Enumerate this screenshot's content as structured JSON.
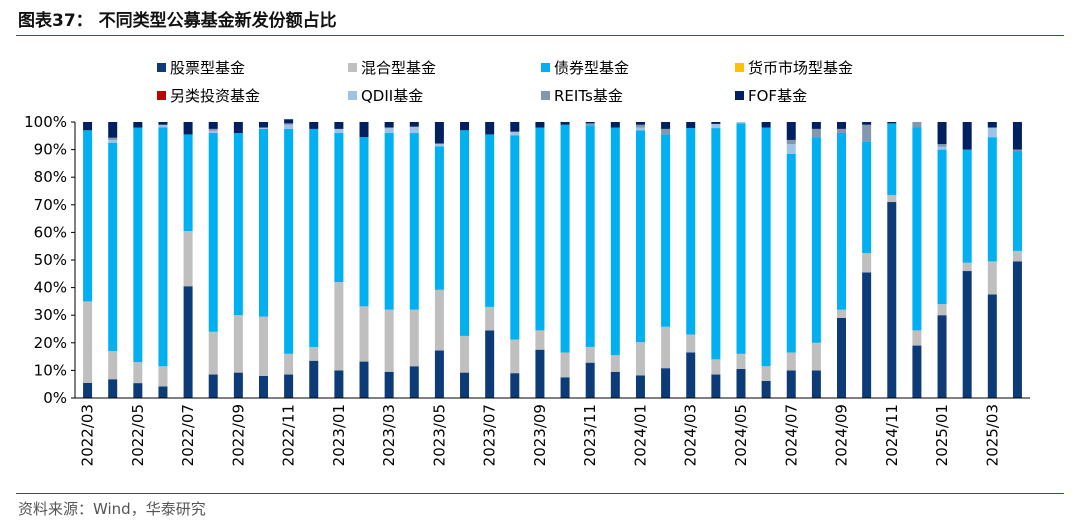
{
  "figure_title": "图表37：  不同类型公募基金新发份额占比",
  "source": "资料来源：Wind，华泰研究",
  "chart_data": {
    "type": "bar",
    "stacked": true,
    "percent": true,
    "ylim": [
      0,
      100
    ],
    "yticks": [
      "0%",
      "10%",
      "20%",
      "30%",
      "40%",
      "50%",
      "60%",
      "70%",
      "80%",
      "90%",
      "100%"
    ],
    "legend_position": "top",
    "grid": false,
    "categories": [
      "2022/03",
      "2022/04",
      "2022/05",
      "2022/06",
      "2022/07",
      "2022/08",
      "2022/09",
      "2022/10",
      "2022/11",
      "2022/12",
      "2023/01",
      "2023/02",
      "2023/03",
      "2023/04",
      "2023/05",
      "2023/06",
      "2023/07",
      "2023/08",
      "2023/09",
      "2023/10",
      "2023/11",
      "2023/12",
      "2024/01",
      "2024/02",
      "2024/03",
      "2024/04",
      "2024/05",
      "2024/06",
      "2024/07",
      "2024/08",
      "2024/09",
      "2024/10",
      "2024/11",
      "2024/12",
      "2025/01",
      "2025/02",
      "2025/03",
      "2025/04"
    ],
    "xtick_labels": [
      "2022/03",
      "",
      "2022/05",
      "",
      "2022/07",
      "",
      "2022/09",
      "",
      "2022/11",
      "",
      "2023/01",
      "",
      "2023/03",
      "",
      "2023/05",
      "",
      "2023/07",
      "",
      "2023/09",
      "",
      "2023/11",
      "",
      "2024/01",
      "",
      "2024/03",
      "",
      "2024/05",
      "",
      "2024/07",
      "",
      "2024/09",
      "",
      "2024/11",
      "",
      "2025/01",
      "",
      "2025/03",
      ""
    ],
    "series": [
      {
        "name": "股票型基金",
        "color": "#0d3b78",
        "values": [
          5.5,
          6.8,
          5.4,
          4.2,
          40.5,
          8.5,
          9.2,
          8.0,
          8.5,
          13.5,
          10.0,
          13.2,
          9.5,
          11.5,
          17.2,
          9.2,
          24.5,
          9.0,
          17.5,
          7.5,
          12.8,
          9.5,
          8.2,
          10.8,
          16.5,
          8.5,
          10.5,
          6.2,
          10.0,
          10.0,
          29.0,
          45.5,
          71.0,
          19.0,
          30.0,
          46.0,
          37.5,
          49.5
        ]
      },
      {
        "name": "混合型基金",
        "color": "#bfbfbf",
        "values": [
          29.5,
          10.2,
          7.6,
          7.3,
          20.0,
          15.5,
          20.8,
          21.5,
          7.5,
          5.0,
          32.0,
          20.0,
          22.5,
          20.5,
          22.0,
          13.3,
          8.5,
          12.2,
          7.0,
          9.0,
          5.7,
          6.0,
          12.0,
          15.0,
          6.5,
          5.5,
          5.5,
          5.3,
          6.5,
          10.0,
          3.0,
          7.0,
          2.5,
          5.5,
          4.0,
          3.0,
          12.0,
          3.8
        ]
      },
      {
        "name": "债券型基金",
        "color": "#00b0f0",
        "values": [
          62.0,
          75.5,
          85.0,
          86.5,
          35.0,
          72.0,
          66.0,
          68.0,
          81.5,
          79.0,
          54.0,
          61.3,
          64.0,
          64.0,
          52.0,
          74.5,
          62.5,
          74.0,
          73.5,
          82.5,
          80.3,
          82.5,
          76.8,
          69.7,
          74.8,
          83.8,
          83.5,
          86.5,
          72.0,
          74.5,
          64.0,
          40.5,
          26.0,
          73.5,
          56.0,
          41.0,
          45.0,
          36.2
        ]
      },
      {
        "name": "货币市场型基金",
        "color": "#ffc000",
        "values": [
          0,
          0,
          0,
          0,
          0,
          0,
          0,
          0,
          0,
          0,
          0,
          0,
          0,
          0,
          0,
          0,
          0,
          0,
          0,
          0,
          0,
          0,
          0,
          0,
          0,
          0,
          0,
          0,
          0,
          0,
          0,
          0,
          0,
          0,
          0,
          0,
          0,
          0
        ]
      },
      {
        "name": "另类投资基金",
        "color": "#c00000",
        "values": [
          0,
          0,
          0,
          0,
          0,
          0,
          0,
          0,
          0,
          0,
          0,
          0,
          0,
          0,
          0,
          0,
          0,
          0,
          0,
          0,
          0,
          0,
          0,
          0,
          0,
          0,
          0,
          0,
          0,
          0,
          0,
          0,
          0,
          0,
          0,
          0,
          0,
          0
        ]
      },
      {
        "name": "QDII基金",
        "color": "#9dc3e6",
        "values": [
          0,
          1.0,
          0,
          1.0,
          0,
          0.8,
          0,
          0.5,
          1.5,
          0,
          1.5,
          0,
          2.0,
          2.3,
          1.0,
          0,
          0,
          1.3,
          0,
          0,
          0,
          0,
          1.0,
          0,
          0,
          1.5,
          0.5,
          0,
          3.5,
          0,
          0,
          0,
          0,
          0,
          1.0,
          0,
          3.5,
          0
        ]
      },
      {
        "name": "REITs基金",
        "color": "#8497b0",
        "values": [
          0,
          0.8,
          0,
          0,
          0,
          0.7,
          0,
          0,
          0.5,
          0,
          0,
          0,
          0,
          0,
          0,
          0,
          0,
          0,
          0,
          0,
          0.7,
          0,
          1.0,
          2.0,
          0,
          0,
          0,
          0,
          1.5,
          3.0,
          1.5,
          6.0,
          0,
          2.0,
          1.0,
          0,
          0,
          0.5
        ]
      },
      {
        "name": "FOF基金",
        "color": "#002060",
        "values": [
          3.0,
          5.7,
          2.0,
          1.0,
          4.5,
          2.5,
          4.0,
          2.0,
          1.5,
          2.5,
          2.5,
          5.5,
          2.0,
          1.7,
          7.8,
          3.0,
          4.5,
          3.5,
          2.0,
          1.0,
          0.5,
          2.0,
          1.0,
          2.5,
          2.2,
          0.7,
          0,
          2.0,
          6.5,
          2.5,
          2.5,
          1.0,
          0.5,
          0,
          8.0,
          10.0,
          2.0,
          10.0
        ]
      }
    ]
  }
}
